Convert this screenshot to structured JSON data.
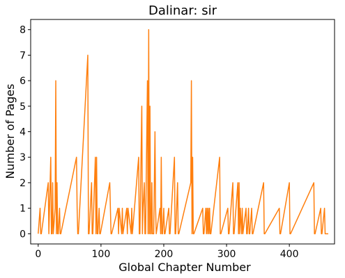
{
  "chart_data": {
    "type": "line",
    "title": "Dalinar: sir",
    "xlabel": "Global Chapter Number",
    "ylabel": "Number of Pages",
    "xlim": [
      -12,
      472
    ],
    "ylim": [
      -0.4,
      8.4
    ],
    "xticks": [
      0,
      100,
      200,
      300,
      400
    ],
    "yticks": [
      0,
      1,
      2,
      3,
      4,
      5,
      6,
      7,
      8
    ],
    "grid": false,
    "legend": "none",
    "series": [
      {
        "color": "#ff7f0e",
        "x": [
          0,
          3,
          4,
          5,
          16,
          17,
          18,
          20,
          21,
          22,
          23,
          24,
          27,
          28,
          29,
          30,
          31,
          32,
          34,
          35,
          36,
          61,
          62,
          63,
          64,
          79,
          80,
          81,
          85,
          86,
          87,
          91,
          92,
          93,
          94,
          95,
          97,
          98,
          99,
          114,
          115,
          116,
          117,
          127,
          128,
          129,
          133,
          134,
          135,
          141,
          142,
          143,
          148,
          149,
          150,
          160,
          161,
          162,
          165,
          166,
          167,
          169,
          170,
          171,
          174,
          175,
          176,
          177,
          178,
          179,
          180,
          181,
          182,
          183,
          184,
          186,
          187,
          188,
          194,
          195,
          196,
          197,
          198,
          200,
          201,
          202,
          208,
          209,
          210,
          217,
          218,
          219,
          222,
          223,
          224,
          243,
          244,
          245,
          246,
          247,
          248,
          262,
          263,
          264,
          267,
          268,
          269,
          270,
          271,
          272,
          273,
          274,
          275,
          289,
          290,
          291,
          302,
          303,
          304,
          310,
          311,
          312,
          318,
          319,
          320,
          321,
          322,
          324,
          325,
          326,
          331,
          332,
          333,
          335,
          336,
          337,
          340,
          341,
          342,
          359,
          360,
          361,
          384,
          385,
          386,
          400,
          401,
          402,
          439,
          440,
          441,
          450,
          451,
          452,
          456,
          457,
          458,
          462
        ],
        "y": [
          0,
          1,
          0,
          0,
          2,
          0,
          1,
          3,
          0,
          0,
          2,
          0,
          1,
          6,
          0,
          2,
          0,
          0,
          1,
          0,
          0,
          3,
          1,
          0,
          0,
          7,
          0,
          0,
          2,
          0,
          0,
          3,
          0,
          3,
          0,
          0,
          1,
          0,
          0,
          2,
          1,
          0,
          0,
          1,
          0,
          1,
          0,
          1,
          0,
          1,
          0,
          1,
          0,
          1,
          0,
          3,
          0,
          0,
          5,
          0,
          1,
          2,
          0,
          0,
          6,
          0,
          8,
          0,
          5,
          0,
          0,
          2,
          0,
          0,
          0,
          4,
          1,
          0,
          1,
          0,
          3,
          0,
          0,
          1,
          0,
          0,
          1,
          0,
          0,
          3,
          0,
          0,
          2,
          0,
          0,
          2,
          6,
          0,
          3,
          0,
          0,
          1,
          0,
          0,
          1,
          0,
          1,
          0,
          1,
          0,
          1,
          0,
          0,
          3,
          0,
          0,
          1,
          0,
          0,
          2,
          0,
          0,
          2,
          0,
          2,
          0,
          1,
          0,
          1,
          0,
          1,
          0,
          0,
          1,
          0,
          0,
          1,
          0,
          0,
          2,
          0,
          0,
          1,
          0,
          0,
          2,
          0,
          0,
          2,
          0,
          0,
          1,
          0,
          0,
          1,
          0,
          0,
          0
        ]
      }
    ]
  }
}
